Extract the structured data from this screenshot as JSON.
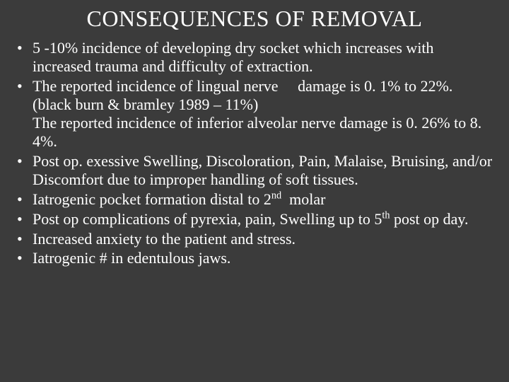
{
  "background_color": "#3b3b3b",
  "text_color": "#ffffff",
  "font_family": "Times New Roman",
  "title": {
    "text": "CONSEQUENCES OF REMOVAL",
    "fontsize": 32,
    "align": "center"
  },
  "bullets": {
    "fontsize": 22,
    "items": [
      {
        "text": "5 -10% incidence of developing dry socket which increases with increased trauma and difficulty of extraction."
      },
      {
        "text": "The reported incidence of lingual nerve  damage is 0. 1% to 22%. (black burn & bramley 1989 – 11%)",
        "continuation": "The reported incidence of inferior alveolar nerve damage is 0. 26% to 8. 4%."
      },
      {
        "text": "Post op. exessive Swelling, Discoloration, Pain, Malaise, Bruising, and/or Discomfort due to improper handling of soft tissues."
      },
      {
        "pre": "Iatrogenic pocket formation distal to 2",
        "sup": "nd",
        "post": "  molar"
      },
      {
        "pre": "Post op complications of pyrexia, pain, Swelling up to 5",
        "sup": "th",
        "post": " post op day."
      },
      {
        "text": "Increased anxiety to the patient and stress."
      },
      {
        "text": "Iatrogenic # in edentulous jaws."
      }
    ]
  }
}
